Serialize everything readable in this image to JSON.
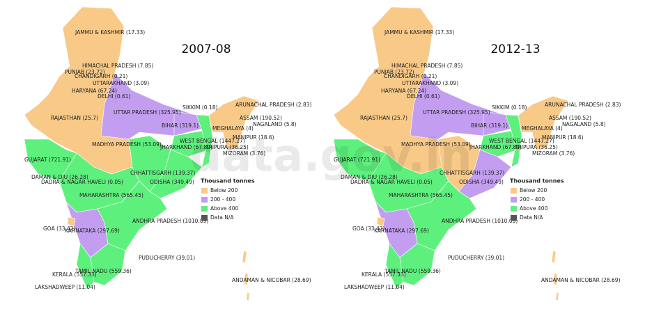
{
  "watermark": "data.gov.in",
  "maps": [
    {
      "title": "2007-08",
      "labels": [
        "JAMMU & KASHMIR (17.33)",
        "HIMACHAL PRADESH (7.85)",
        "PUNJAB (23.72)",
        "CHANDIGARH (0.21)",
        "UTTARAKHAND (3.09)",
        "HARYANA (67.24)",
        "DELHI (0.61)",
        "SIKKIM (0.18)",
        "ARUNACHAL PRADESH (2.83)",
        "UTTAR PRADESH (325.95)",
        "RAJASTHAN (25.7)",
        "ASSAM (190.52)",
        "NAGALAND (5.8)",
        "BIHAR (319.1)",
        "MEGHALAYA (4)",
        "MANIPUR (18.6)",
        "MADHYA PRADESH (53.09)",
        "WEST BENGAL (1447.27)",
        "JHARKHAND (67.89)",
        "TRIPURA (36.25)",
        "MIZORAM (3.76)",
        "GUJARAT (721.91)",
        "CHHATTISGARH (139.37)",
        "DAMAN & DIU (26.28)",
        "DADRA & NAGAR HAVELI (0.05)",
        "ODISHA (349.49)",
        "MAHARASHTRA (565.45)",
        "ANDHRA PRADESH (1010.09)",
        "GOA (33.42)",
        "KARNATAKA (297.69)",
        "PUDUCHERRY (39.01)",
        "TAMIL NADU (559.36)",
        "KERALA (557.33)",
        "LAKSHADWEEP (11.04)",
        "ANDAMAN & NICOBAR (28.69)"
      ],
      "legend": {
        "title": "Thousand tonnes",
        "items": [
          "Below 200",
          "200 - 400",
          "Above 400",
          "Data N/A"
        ]
      }
    },
    {
      "title": "2012-13",
      "labels": [
        "JAMMU & KASHMIR (17.33)",
        "HIMACHAL PRADESH (7.85)",
        "PUNJAB (23.72)",
        "CHANDIGARH (0.21)",
        "UTTARAKHAND (3.09)",
        "HARYANA (67.24)",
        "DELHI (0.61)",
        "SIKKIM (0.18)",
        "ARUNACHAL PRADESH (2.83)",
        "UTTAR PRADESH (325.95)",
        "RAJASTHAN (25.7)",
        "ASSAM (190.52)",
        "NAGALAND (5.8)",
        "BIHAR (319.1)",
        "MEGHALAYA (4)",
        "MANIPUR (18.6)",
        "MADHYA PRADESH (53.09)",
        "WEST BENGAL (1447.27)",
        "JHARKHAND (67.89)",
        "TRIPURA (36.25)",
        "MIZORAM (3.76)",
        "GUJARAT (721.91)",
        "CHHATTISGARH (139.37)",
        "DAMAN & DIU (26.28)",
        "DADRA & NAGAR HAVELI (0.05)",
        "ODISHA (349.49)",
        "MAHARASHTRA (565.45)",
        "ANDHRA PRADESH (1010.09)",
        "GOA (33.42)",
        "KARNATAKA (297.69)",
        "PUDUCHERRY (39.01)",
        "TAMIL NADU (559.36)",
        "KERALA (557.33)",
        "LAKSHADWEEP (11.04)",
        "ANDAMAN & NICOBAR (28.69)"
      ],
      "legend": {
        "title": "Thousand tonnes",
        "items": [
          "Below 200",
          "200 - 400",
          "Above 400",
          "Data N/A"
        ]
      }
    }
  ]
}
